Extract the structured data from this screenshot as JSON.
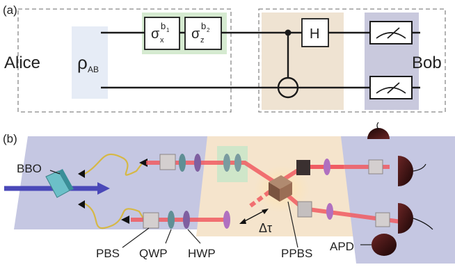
{
  "panel_a": {
    "label": "(a)",
    "alice": "Alice",
    "bob": "Bob",
    "state": {
      "symbol": "ρ",
      "subscript": "AB"
    },
    "gate_x": {
      "symbol": "σ",
      "subscript": "x",
      "superscript": "b",
      "super_subscript": "1"
    },
    "gate_z": {
      "symbol": "σ",
      "subscript": "z",
      "superscript": "b",
      "super_subscript": "2"
    },
    "hadamard": "H",
    "colors": {
      "state_box": "#e6ecf6",
      "gate_group": "#d5ead0",
      "cnot_region": "#efe3d2",
      "measure_region": "#c9c9dd",
      "wire": "#1a1a1a",
      "dashed_border": "#888888"
    }
  },
  "panel_b": {
    "label": "(b)",
    "labels": {
      "bbo": "BBO",
      "pbs": "PBS",
      "qwp": "QWP",
      "hwp": "HWP",
      "ppbs": "PPBS",
      "apd": "APD",
      "delay": "Δτ"
    },
    "colors": {
      "left_table": "#c5c7e2",
      "right_table": "#c5c7e2",
      "center_table": "#f5e4cc",
      "green_patch": "#cfe6c9",
      "beam": "#f05a60",
      "pump": "#4a48b8",
      "fiber": "#d6b845",
      "detector": "#2a1010"
    }
  }
}
